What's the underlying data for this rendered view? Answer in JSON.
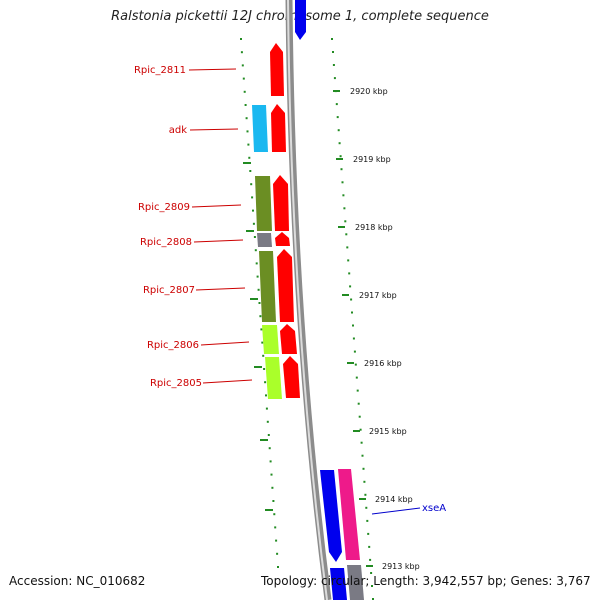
{
  "title": "Ralstonia pickettii 12J chromosome 1, complete sequence",
  "accession": "Accession: NC_010682",
  "topology": "Topology: circular; Length: 3,942,557 bp; Genes: 3,767",
  "colors": {
    "backbone": "#8c8c8c",
    "gene_arrow": "#ff0000",
    "adk_block": "#1ab8f0",
    "olive_block": "#6b8e23",
    "lime_block": "#aaff2a",
    "grey_block": "#7a7a84",
    "xseA_blue": "#0000ee",
    "xseA_pink": "#ee1a8a",
    "ruler": "#228b22",
    "gene_label": "#cc0000",
    "xseA_label": "#0000cc"
  },
  "gene_labels": [
    "Rpic_2811",
    "adk",
    "Rpic_2809",
    "Rpic_2808",
    "Rpic_2807",
    "Rpic_2806",
    "Rpic_2805"
  ],
  "xseA_label": "xseA",
  "ticks": [
    "2920 kbp",
    "2919 kbp",
    "2918 kbp",
    "2917 kbp",
    "2916 kbp",
    "2915 kbp",
    "2914 kbp",
    "2913 kbp"
  ]
}
